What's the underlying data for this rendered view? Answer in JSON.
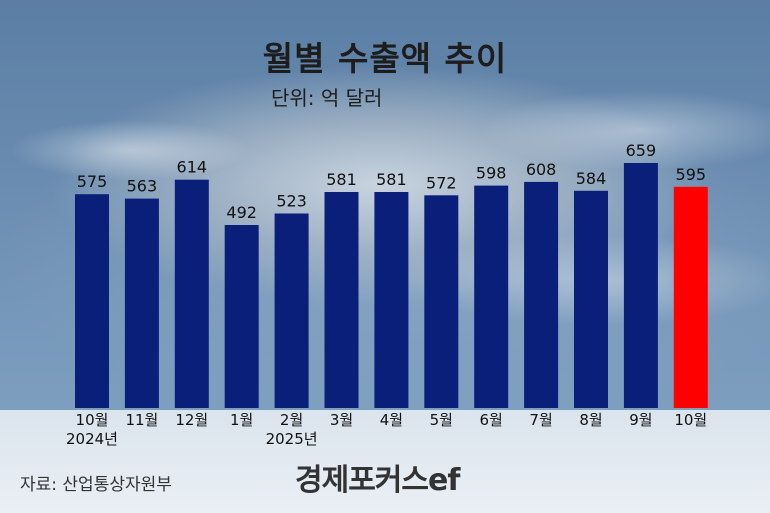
{
  "header": {
    "title": "월별 수출액 추이",
    "unit": "단위: 억 달러"
  },
  "footer": {
    "source": "자료: 산업통상자원부",
    "logo": "경제포커스ef"
  },
  "colors": {
    "bar": "#0a1f7a",
    "highlight": "#ff0000"
  },
  "chart_data": {
    "type": "bar",
    "title": "월별 수출액 추이",
    "ylabel": "",
    "xlabel": "",
    "categories": [
      "10월",
      "11월",
      "12월",
      "1월",
      "2월",
      "3월",
      "4월",
      "5월",
      "6월",
      "7월",
      "8월",
      "9월",
      "10월"
    ],
    "year_labels": [
      "2024년",
      "",
      "",
      "",
      "2025년",
      "",
      "",
      "",
      "",
      "",
      "",
      "",
      ""
    ],
    "values": [
      575,
      563,
      614,
      492,
      523,
      581,
      581,
      572,
      598,
      608,
      584,
      659,
      595
    ],
    "highlight_index": 12,
    "ylim": [
      0,
      700
    ],
    "grid": false,
    "data_labels": true
  }
}
